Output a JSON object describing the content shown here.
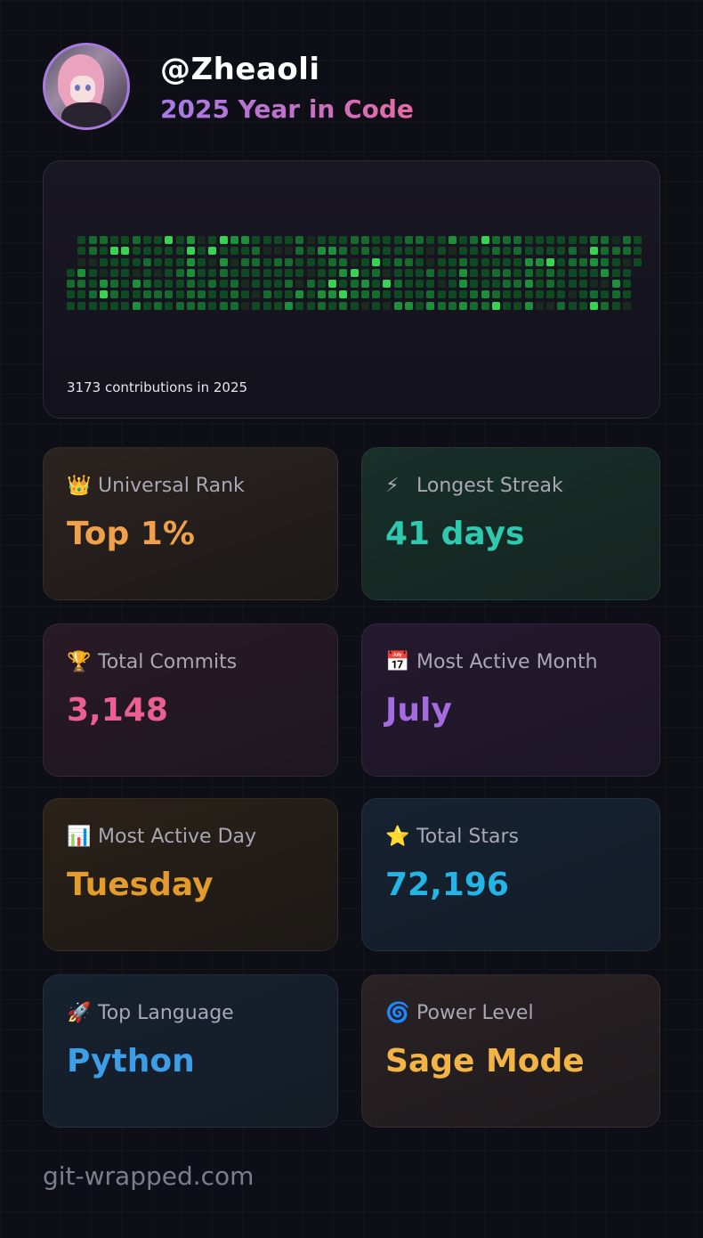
{
  "header": {
    "username": "@Zheaoli",
    "subtitle": "2025 Year in Code"
  },
  "contributions": {
    "caption": "3173 contributions in 2025",
    "colors": [
      "#1b2a1f",
      "#0f4a22",
      "#166b2e",
      "#1e8f3b",
      "#39d353"
    ]
  },
  "stats": [
    {
      "icon": "crown-icon",
      "emoji": "👑",
      "label": "Universal Rank",
      "value": "Top 1%",
      "color": "#f0a04b"
    },
    {
      "icon": "lightning-icon",
      "emoji": "⚡",
      "label": "Longest Streak",
      "value": "41 days",
      "color": "#2fc9b0"
    },
    {
      "icon": "trophy-icon",
      "emoji": "🏆",
      "label": "Total Commits",
      "value": "3,148",
      "color": "#ec5f92"
    },
    {
      "icon": "calendar-icon",
      "emoji": "📅",
      "label": "Most Active Month",
      "value": "July",
      "color": "#a56be0"
    },
    {
      "icon": "bar-chart-icon",
      "emoji": "📊",
      "label": "Most Active Day",
      "value": "Tuesday",
      "color": "#e39b2c"
    },
    {
      "icon": "star-icon",
      "emoji": "⭐",
      "label": "Total Stars",
      "value": "72,196",
      "color": "#23b5e6"
    },
    {
      "icon": "rocket-icon",
      "emoji": "🚀",
      "label": "Top Language",
      "value": "Python",
      "color": "#3d9ee8"
    },
    {
      "icon": "spiral-icon",
      "emoji": "🌀",
      "label": "Power Level",
      "value": "Sage Mode",
      "color": "#f2b545"
    }
  ],
  "footer": {
    "site": "git-wrapped.com"
  }
}
